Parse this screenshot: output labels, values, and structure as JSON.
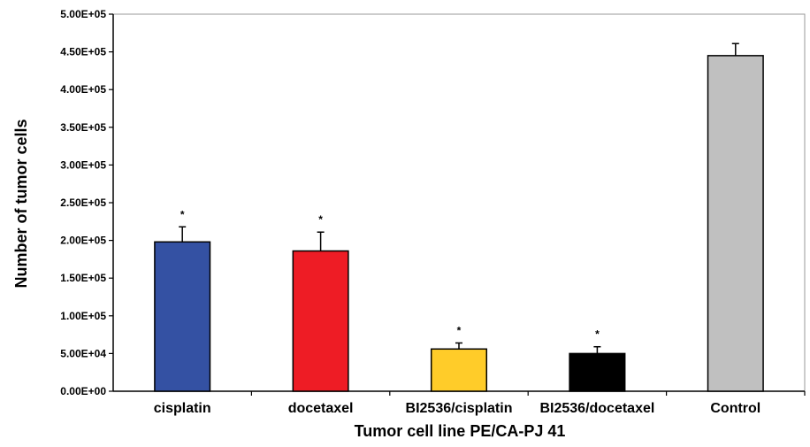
{
  "chart_data": {
    "type": "bar",
    "title": "",
    "xlabel": "Tumor cell line PE/CA-PJ 41",
    "ylabel": "Number of tumor cells",
    "ylim": [
      0,
      500000
    ],
    "yticks": [
      0,
      50000,
      100000,
      150000,
      200000,
      250000,
      300000,
      350000,
      400000,
      450000,
      500000
    ],
    "ytick_labels": [
      "0.00E+00",
      "5.00E+04",
      "1.00E+05",
      "1.50E+05",
      "2.00E+05",
      "2.50E+05",
      "3.00E+05",
      "3.50E+05",
      "4.00E+05",
      "4.50E+05",
      "5.00E+05"
    ],
    "grid": false,
    "legend": "none",
    "categories": [
      "cisplatin",
      "docetaxel",
      "BI2536/cisplatin",
      "BI2536/docetaxel",
      "Control"
    ],
    "values": [
      198000,
      186000,
      56000,
      50000,
      445000
    ],
    "errors": [
      20000,
      25000,
      8000,
      9000,
      16000
    ],
    "significance": [
      "*",
      "*",
      "*",
      "*",
      ""
    ],
    "colors": [
      "#3451a3",
      "#ee1c25",
      "#ffcc29",
      "#000000",
      "#c0c0c0"
    ]
  }
}
